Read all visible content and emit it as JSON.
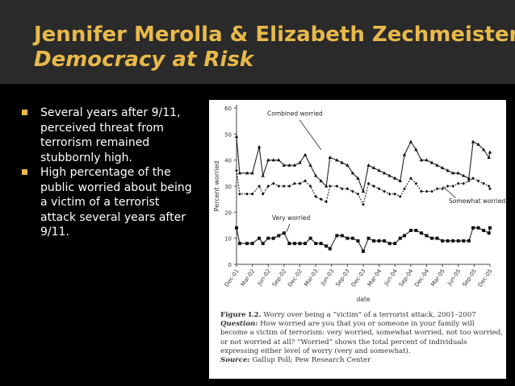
{
  "title": {
    "line1": "Jennifer Merolla & Elizabeth Zechmeister,",
    "line2": "Democracy at Risk"
  },
  "bullets": [
    "Several years after 9/11, perceived threat from terrorism remained stubbornly high.",
    "High percentage of the public worried about being a victim of a terrorist attack several years after 9/11."
  ],
  "caption": {
    "label": "Figure I.2.",
    "title": "Worry over being a “victim” of a terrorist attack, 2001–2007",
    "question_label": "Question:",
    "question": "How worried are you that you or someone in your family will become a victim of terrorism: very worried, somewhat worried, not too worried, or not worried at all? “Worried” shows the total percent of individuals expressing either level of worry (very and somewhat).",
    "source_label": "Source:",
    "source": "Gallup Poll; Pew Research Center"
  },
  "colors": {
    "background": "#000000",
    "title_band": "#2a2a2a",
    "title_text": "#e8b94a",
    "bullet": "#e8b94a",
    "body_text": "#ffffff"
  },
  "chart_data": {
    "type": "line",
    "title": "",
    "xlabel": "date",
    "ylabel": "Percent worried",
    "ylim": [
      0,
      60
    ],
    "yticks": [
      0,
      10,
      20,
      30,
      40,
      50,
      60
    ],
    "x_ticks": [
      "Dec-01",
      "Mar-02",
      "Jun-02",
      "Sep-02",
      "Dec-02",
      "Mar-03",
      "Jun-03",
      "Sep-03",
      "Dec-03",
      "Mar-04",
      "Jun-04",
      "Sep-04",
      "Dec-04",
      "Mar-05",
      "Jun-05",
      "Sep-05",
      "Dec-05"
    ],
    "x_range": [
      0,
      48
    ],
    "series": [
      {
        "name": "Combined worried",
        "marker": "triangle",
        "points": [
          [
            0,
            49
          ],
          [
            0.6,
            35
          ],
          [
            2,
            35
          ],
          [
            3,
            35
          ],
          [
            4.3,
            45
          ],
          [
            5,
            34
          ],
          [
            6,
            40
          ],
          [
            7,
            40
          ],
          [
            8,
            40
          ],
          [
            9,
            38
          ],
          [
            10,
            38
          ],
          [
            11,
            38
          ],
          [
            12,
            39
          ],
          [
            13,
            42
          ],
          [
            14,
            38
          ],
          [
            15,
            34
          ],
          [
            16,
            32
          ],
          [
            17,
            30
          ],
          [
            17.7,
            41
          ],
          [
            19,
            40
          ],
          [
            20,
            39
          ],
          [
            21,
            38
          ],
          [
            22,
            35
          ],
          [
            23,
            33
          ],
          [
            24,
            28
          ],
          [
            25,
            38
          ],
          [
            26,
            37
          ],
          [
            27,
            36
          ],
          [
            28,
            35
          ],
          [
            29,
            34
          ],
          [
            30,
            33
          ],
          [
            31,
            32
          ],
          [
            31.8,
            42
          ],
          [
            33,
            47
          ],
          [
            34,
            44
          ],
          [
            35,
            40
          ],
          [
            36,
            40
          ],
          [
            37,
            39
          ],
          [
            38,
            38
          ],
          [
            39,
            37
          ],
          [
            40,
            36
          ],
          [
            41,
            35
          ],
          [
            42,
            35
          ],
          [
            43,
            34
          ],
          [
            44,
            33
          ],
          [
            44.8,
            47
          ],
          [
            45.8,
            46
          ],
          [
            46.8,
            44
          ],
          [
            47.8,
            41
          ],
          [
            48,
            43
          ]
        ]
      },
      {
        "name": "Somewhat worried",
        "marker": "diamond",
        "points": [
          [
            0,
            36
          ],
          [
            0.6,
            27
          ],
          [
            2,
            27
          ],
          [
            3,
            27
          ],
          [
            4.3,
            30
          ],
          [
            5,
            27
          ],
          [
            6,
            30
          ],
          [
            7,
            31
          ],
          [
            8,
            30
          ],
          [
            9,
            30
          ],
          [
            10,
            30
          ],
          [
            11,
            31
          ],
          [
            12,
            31
          ],
          [
            13,
            32
          ],
          [
            14,
            30
          ],
          [
            15,
            26
          ],
          [
            16,
            25
          ],
          [
            17,
            24
          ],
          [
            17.7,
            30
          ],
          [
            19,
            30
          ],
          [
            20,
            29
          ],
          [
            21,
            29
          ],
          [
            22,
            28
          ],
          [
            23,
            27
          ],
          [
            24,
            23
          ],
          [
            25,
            31
          ],
          [
            26,
            30
          ],
          [
            27,
            29
          ],
          [
            28,
            28
          ],
          [
            29,
            27
          ],
          [
            30,
            27
          ],
          [
            31,
            26
          ],
          [
            31.8,
            29
          ],
          [
            33,
            33
          ],
          [
            34,
            31
          ],
          [
            35,
            28
          ],
          [
            36,
            28
          ],
          [
            37,
            28
          ],
          [
            38,
            29
          ],
          [
            39,
            29
          ],
          [
            40,
            30
          ],
          [
            41,
            30
          ],
          [
            42,
            31
          ],
          [
            43,
            31
          ],
          [
            44,
            32
          ],
          [
            44.8,
            33
          ],
          [
            45.8,
            32
          ],
          [
            46.8,
            31
          ],
          [
            47.8,
            30
          ],
          [
            48,
            29
          ]
        ]
      },
      {
        "name": "Very worried",
        "marker": "square",
        "points": [
          [
            0,
            14
          ],
          [
            0.6,
            8
          ],
          [
            2,
            8
          ],
          [
            3,
            8
          ],
          [
            4.3,
            10
          ],
          [
            5,
            8
          ],
          [
            6,
            10
          ],
          [
            7,
            10
          ],
          [
            8,
            11
          ],
          [
            9,
            12
          ],
          [
            10,
            8
          ],
          [
            11,
            8
          ],
          [
            12,
            8
          ],
          [
            13,
            8
          ],
          [
            14,
            10
          ],
          [
            15,
            8
          ],
          [
            16,
            8
          ],
          [
            17,
            7
          ],
          [
            17.7,
            6
          ],
          [
            19,
            11
          ],
          [
            20,
            11
          ],
          [
            21,
            10
          ],
          [
            22,
            10
          ],
          [
            23,
            9
          ],
          [
            24,
            5
          ],
          [
            25,
            10
          ],
          [
            26,
            9
          ],
          [
            27,
            9
          ],
          [
            28,
            9
          ],
          [
            29,
            8
          ],
          [
            30,
            8
          ],
          [
            31,
            10
          ],
          [
            31.8,
            11
          ],
          [
            33,
            13
          ],
          [
            34,
            13
          ],
          [
            35,
            12
          ],
          [
            36,
            11
          ],
          [
            37,
            10
          ],
          [
            38,
            10
          ],
          [
            39,
            9
          ],
          [
            40,
            9
          ],
          [
            41,
            9
          ],
          [
            42,
            9
          ],
          [
            43,
            9
          ],
          [
            44,
            9
          ],
          [
            44.8,
            14
          ],
          [
            45.8,
            14
          ],
          [
            46.8,
            13
          ],
          [
            47.8,
            12
          ],
          [
            48,
            14
          ]
        ]
      }
    ],
    "annotations": [
      {
        "text": "Combined worried",
        "target_series": "Combined worried"
      },
      {
        "text": "Somewhat worried",
        "target_series": "Somewhat worried"
      },
      {
        "text": "Very worried",
        "target_series": "Very worried"
      }
    ]
  }
}
